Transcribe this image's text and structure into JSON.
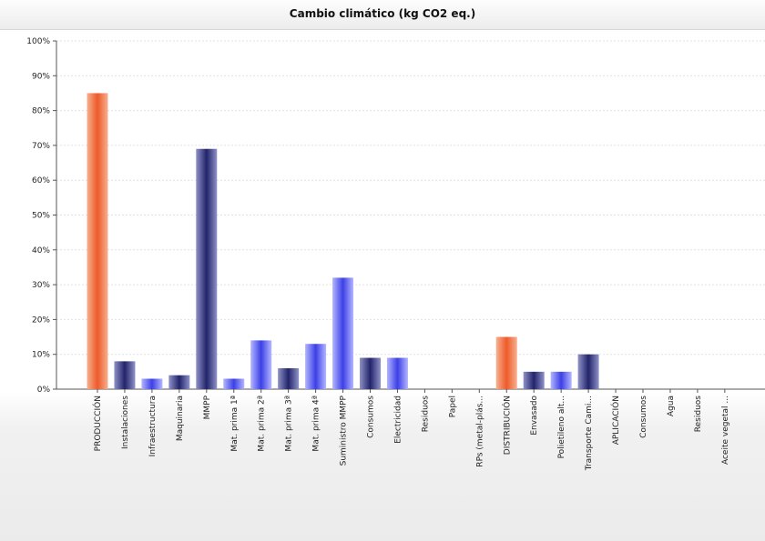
{
  "chart_data": {
    "type": "bar",
    "title": "Cambio climático (kg CO2 eq.)",
    "xlabel": "",
    "ylabel": "",
    "ylim": [
      0,
      100
    ],
    "y_ticks": [
      "0%",
      "10%",
      "20%",
      "30%",
      "40%",
      "50%",
      "60%",
      "70%",
      "80%",
      "90%",
      "100%"
    ],
    "grid": true,
    "colors": {
      "stage": "#f06a3c",
      "blue": "#4a4ee6",
      "navy": "#2f3277"
    },
    "categories": [
      "PRODUCCIÓN",
      "Instalaciones",
      "Infraestructura",
      "Maquinaria",
      "MMPP",
      "Mat. prima 1ª",
      "Mat. prima 2ª",
      "Mat. prima 3ª",
      "Mat. prima 4ª",
      "Suministro MMPP",
      "Consumos",
      "Electricidad",
      "Residuos",
      "Papel",
      "RPs (metal-plás...",
      "DISTRIBUCIÓN",
      "Envasado",
      "Polietileno alt...",
      "Transporte Cami...",
      "APLICACIÓN",
      "Consumos",
      "Agua",
      "Residuos",
      "Aceite vegetal ..."
    ],
    "values": [
      85,
      8,
      3,
      4,
      69,
      3,
      14,
      6,
      13,
      32,
      9,
      9,
      0,
      0,
      0,
      15,
      5,
      5,
      10,
      0,
      0,
      0,
      0,
      0
    ],
    "bar_color_keys": [
      "stage",
      "navy",
      "blue",
      "navy",
      "navy",
      "blue",
      "blue",
      "navy",
      "blue",
      "blue",
      "navy",
      "blue",
      "blue",
      "blue",
      "blue",
      "stage",
      "navy",
      "blue",
      "navy",
      "blue",
      "blue",
      "blue",
      "blue",
      "blue"
    ]
  }
}
